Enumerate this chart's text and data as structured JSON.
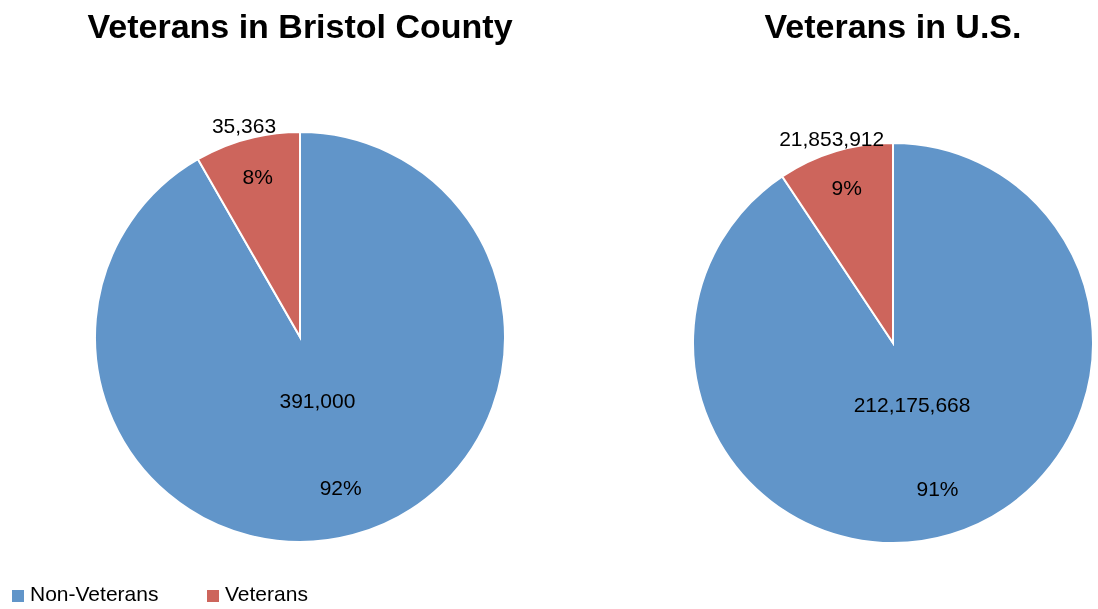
{
  "chart_data": [
    {
      "type": "pie",
      "title": "Veterans in Bristol County",
      "categories": [
        "Non-Veterans",
        "Veterans"
      ],
      "values": [
        391000,
        35363
      ],
      "colors": [
        "#6195c9",
        "#cd655c"
      ],
      "value_labels": [
        "391,000",
        "35,363"
      ],
      "annotations": [
        {
          "text": "92%",
          "x": "Non-Veterans"
        },
        {
          "text": "8%",
          "x": "Veterans"
        }
      ],
      "legend": "bottom"
    },
    {
      "type": "pie",
      "title": "Veterans in U.S.",
      "categories": [
        null,
        null
      ],
      "values": [
        212175668,
        21853912
      ],
      "colors": [
        "#6195c9",
        "#cd655c"
      ],
      "value_labels": [
        "212,175,668",
        "21,853,912"
      ],
      "annotations": [
        "91%",
        "9%"
      ]
    }
  ]
}
